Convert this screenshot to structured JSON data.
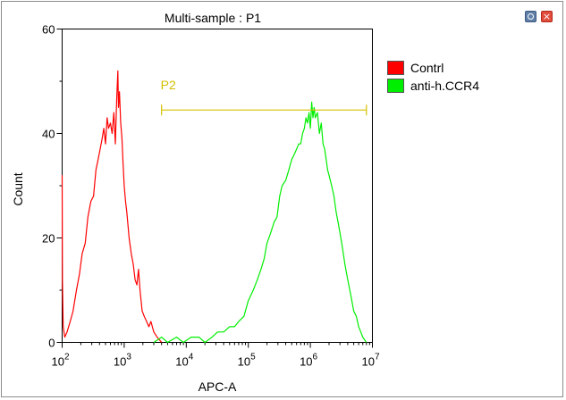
{
  "window": {
    "settings_icon": "gear-icon",
    "close_icon": "close-icon",
    "close_glyph": "×"
  },
  "chart_data": {
    "type": "histogram",
    "title": "Multi-sample : P1",
    "xlabel": "APC-A",
    "ylabel": "Count",
    "x_scale": "log10",
    "xlim": [
      100,
      10000000
    ],
    "ylim": [
      0,
      60
    ],
    "x_ticks": [
      {
        "value": 100,
        "base": "10",
        "exp": "2"
      },
      {
        "value": 1000,
        "base": "10",
        "exp": "3"
      },
      {
        "value": 10000,
        "base": "10",
        "exp": "4"
      },
      {
        "value": 100000,
        "base": "10",
        "exp": "5"
      },
      {
        "value": 1000000,
        "base": "10",
        "exp": "6"
      },
      {
        "value": 10000000,
        "base": "10",
        "exp": "7"
      }
    ],
    "y_ticks": [
      {
        "value": 0,
        "label": "0"
      },
      {
        "value": 20,
        "label": "20"
      },
      {
        "value": 40,
        "label": "40"
      },
      {
        "value": 60,
        "label": "60"
      }
    ],
    "legend": {
      "position": "right",
      "entries": [
        {
          "name": "Contrl",
          "color": "#ff0000"
        },
        {
          "name": "anti-h.CCR4",
          "color": "#00ee00"
        }
      ]
    },
    "gate": {
      "name": "P2",
      "x_start": 4000,
      "x_end": 8000000,
      "y": 44.5,
      "color": "#d4c000"
    },
    "series": [
      {
        "name": "Contrl",
        "color": "#ff0000",
        "points": [
          [
            100,
            32
          ],
          [
            101,
            12
          ],
          [
            104,
            3
          ],
          [
            110,
            1
          ],
          [
            120,
            2
          ],
          [
            135,
            4
          ],
          [
            150,
            6
          ],
          [
            170,
            10
          ],
          [
            190,
            13
          ],
          [
            210,
            17
          ],
          [
            235,
            19
          ],
          [
            260,
            24
          ],
          [
            290,
            27
          ],
          [
            320,
            28
          ],
          [
            350,
            33
          ],
          [
            380,
            35
          ],
          [
            410,
            37
          ],
          [
            440,
            39
          ],
          [
            470,
            41
          ],
          [
            500,
            38
          ],
          [
            530,
            43
          ],
          [
            560,
            41
          ],
          [
            600,
            42
          ],
          [
            640,
            40
          ],
          [
            680,
            44
          ],
          [
            720,
            38
          ],
          [
            760,
            47
          ],
          [
            790,
            52
          ],
          [
            810,
            45
          ],
          [
            840,
            48
          ],
          [
            880,
            42
          ],
          [
            920,
            39
          ],
          [
            960,
            34
          ],
          [
            1000,
            30
          ],
          [
            1050,
            27
          ],
          [
            1100,
            25
          ],
          [
            1200,
            20
          ],
          [
            1300,
            17
          ],
          [
            1400,
            15
          ],
          [
            1500,
            12
          ],
          [
            1600,
            11
          ],
          [
            1700,
            14
          ],
          [
            1800,
            10
          ],
          [
            1950,
            6
          ],
          [
            2100,
            5
          ],
          [
            2300,
            4
          ],
          [
            2500,
            3
          ],
          [
            2700,
            4
          ],
          [
            3000,
            2
          ],
          [
            3400,
            1
          ],
          [
            4000,
            0
          ]
        ]
      },
      {
        "name": "anti-h.CCR4",
        "color": "#00ee00",
        "points": [
          [
            3000,
            0
          ],
          [
            4000,
            1
          ],
          [
            5000,
            0
          ],
          [
            7000,
            1
          ],
          [
            9000,
            0
          ],
          [
            12000,
            1
          ],
          [
            16000,
            1
          ],
          [
            20000,
            0
          ],
          [
            26000,
            1
          ],
          [
            32000,
            2
          ],
          [
            40000,
            2
          ],
          [
            50000,
            3
          ],
          [
            60000,
            3
          ],
          [
            70000,
            4
          ],
          [
            85000,
            5
          ],
          [
            100000,
            8
          ],
          [
            120000,
            10
          ],
          [
            140000,
            12
          ],
          [
            160000,
            14
          ],
          [
            180000,
            16
          ],
          [
            200000,
            19
          ],
          [
            230000,
            21
          ],
          [
            260000,
            23
          ],
          [
            290000,
            24
          ],
          [
            320000,
            28
          ],
          [
            350000,
            30
          ],
          [
            400000,
            31
          ],
          [
            450000,
            33
          ],
          [
            500000,
            35
          ],
          [
            550000,
            36
          ],
          [
            600000,
            37
          ],
          [
            650000,
            38
          ],
          [
            700000,
            38
          ],
          [
            750000,
            40
          ],
          [
            800000,
            41
          ],
          [
            850000,
            43
          ],
          [
            900000,
            42
          ],
          [
            950000,
            44
          ],
          [
            1000000,
            41
          ],
          [
            1050000,
            46
          ],
          [
            1100000,
            43
          ],
          [
            1150000,
            45
          ],
          [
            1200000,
            43
          ],
          [
            1300000,
            44
          ],
          [
            1400000,
            40
          ],
          [
            1500000,
            42
          ],
          [
            1600000,
            38
          ],
          [
            1700000,
            37
          ],
          [
            1800000,
            35
          ],
          [
            1900000,
            33
          ],
          [
            2000000,
            32
          ],
          [
            2200000,
            30
          ],
          [
            2400000,
            28
          ],
          [
            2600000,
            25
          ],
          [
            2800000,
            23
          ],
          [
            3000000,
            21
          ],
          [
            3300000,
            18
          ],
          [
            3600000,
            15
          ],
          [
            4000000,
            12
          ],
          [
            4500000,
            9
          ],
          [
            5000000,
            6
          ],
          [
            5500000,
            5
          ],
          [
            6000000,
            3
          ],
          [
            6500000,
            2
          ],
          [
            7000000,
            1
          ],
          [
            8000000,
            0
          ]
        ]
      }
    ]
  }
}
